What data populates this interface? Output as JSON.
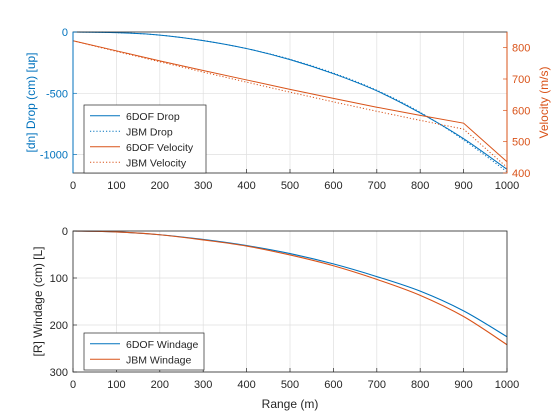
{
  "chart_data": [
    {
      "type": "line",
      "x": [
        0,
        100,
        200,
        300,
        400,
        500,
        600,
        700,
        800,
        900,
        1000
      ],
      "xlim": [
        0,
        1000
      ],
      "x_ticks": [
        "0",
        "100",
        "200",
        "300",
        "400",
        "500",
        "600",
        "700",
        "800",
        "900",
        "1000"
      ],
      "ylabel_left": "[dn] Drop (cm) [up]",
      "ylim_left": [
        -1150,
        0
      ],
      "y_ticks_left": [
        "0",
        "-500",
        "-1000"
      ],
      "ylabel_right": "Velocity (m/s)",
      "ylim_right": [
        400,
        850
      ],
      "y_ticks_right": [
        "800",
        "700",
        "600",
        "500",
        "400"
      ],
      "grid": true,
      "legend_position": "bottom-left",
      "colors": {
        "blue": "#0072BD",
        "orange": "#D95319"
      },
      "series": [
        {
          "name": "6DOF Drop",
          "axis": "left",
          "color": "#0072BD",
          "style": "solid",
          "values": [
            0,
            -5,
            -25,
            -70,
            -135,
            -225,
            -340,
            -480,
            -660,
            -870,
            -1120
          ]
        },
        {
          "name": "JBM Drop",
          "axis": "left",
          "color": "#0072BD",
          "style": "dotted",
          "values": [
            0,
            -5,
            -25,
            -70,
            -135,
            -222,
            -335,
            -475,
            -655,
            -880,
            -1140
          ]
        },
        {
          "name": "6DOF Velocity",
          "axis": "right",
          "color": "#D95319",
          "style": "solid",
          "values": [
            822,
            790,
            758,
            727,
            697,
            667,
            638,
            610,
            584,
            559,
            436
          ]
        },
        {
          "name": "JBM Velocity",
          "axis": "right",
          "color": "#D95319",
          "style": "dotted",
          "values": [
            822,
            788,
            755,
            722,
            690,
            658,
            627,
            597,
            568,
            540,
            418
          ]
        }
      ]
    },
    {
      "type": "line",
      "x": [
        0,
        100,
        200,
        300,
        400,
        500,
        600,
        700,
        800,
        900,
        1000
      ],
      "xlim": [
        0,
        1000
      ],
      "x_ticks": [
        "0",
        "100",
        "200",
        "300",
        "400",
        "500",
        "600",
        "700",
        "800",
        "900",
        "1000"
      ],
      "xlabel": "Range (m)",
      "ylabel": "[R] Windage (cm) [L]",
      "ylim": [
        0,
        300
      ],
      "y_reversed": true,
      "y_ticks": [
        "0",
        "100",
        "200",
        "300"
      ],
      "grid": true,
      "legend_position": "bottom-left",
      "series": [
        {
          "name": "6DOF Windage",
          "color": "#0072BD",
          "style": "solid",
          "values": [
            0,
            2,
            8,
            18,
            31,
            48,
            70,
            97,
            128,
            170,
            225
          ]
        },
        {
          "name": "JBM Windage",
          "color": "#D95319",
          "style": "solid",
          "values": [
            0,
            2,
            8,
            19,
            32,
            51,
            74,
            103,
            137,
            182,
            242
          ]
        }
      ]
    }
  ]
}
